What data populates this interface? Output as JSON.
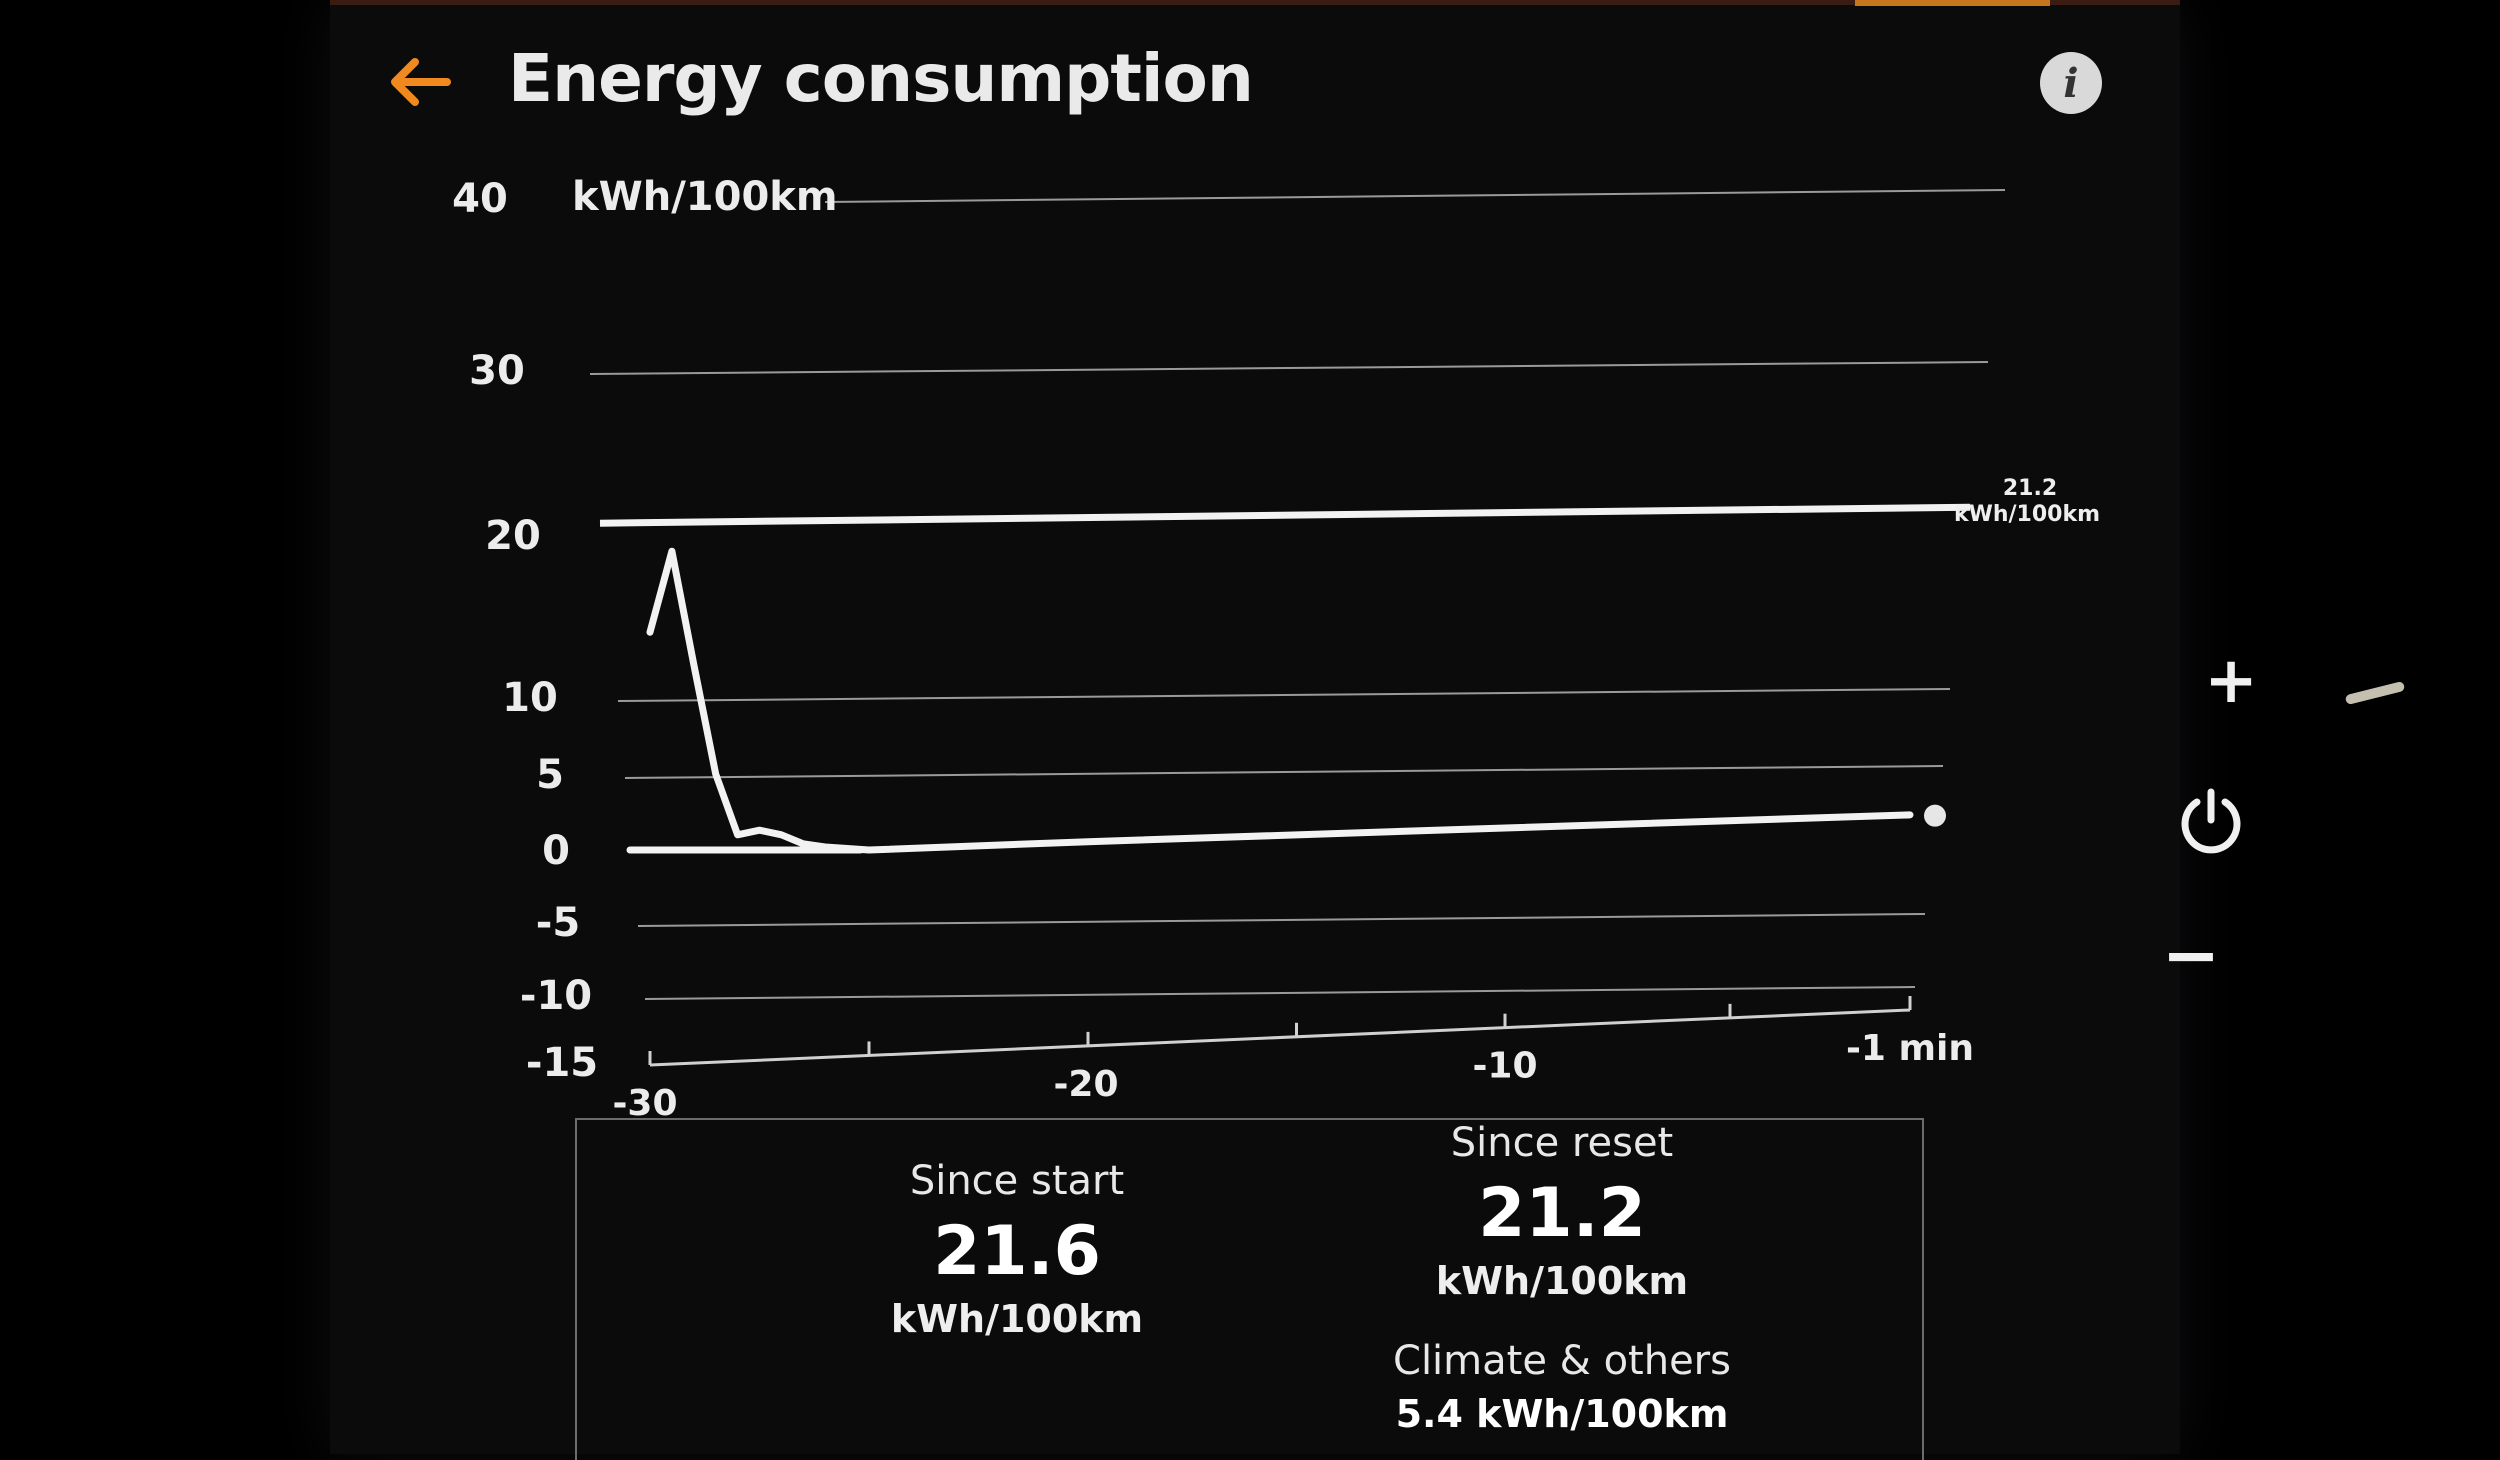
{
  "header": {
    "title": "Energy consumption",
    "back_icon": "arrow-left-icon",
    "info_icon": "info-icon",
    "info_label": "i"
  },
  "colors": {
    "accent": "#f0891e",
    "background": "#0b0b0c",
    "line": "#f2f2f2",
    "grid": "#9a9a9a"
  },
  "chart_data": {
    "type": "line",
    "y_unit": "kWh/100km",
    "y_ticks": [
      "40",
      "30",
      "20",
      "10",
      "5",
      "0",
      "-5",
      "-10",
      "-15"
    ],
    "x_ticks": [
      "-30",
      "-20",
      "-10",
      "-1 min"
    ],
    "series": [
      {
        "x": [
          -30,
          -29.5,
          -29.0,
          -28.5,
          -28.0,
          -27.5,
          -27.0,
          -26.5,
          -26.0,
          -25.0,
          -20,
          -10,
          -1
        ],
        "y": [
          14,
          19,
          12,
          5,
          1,
          1.3,
          1,
          0.4,
          0.2,
          0,
          0.4,
          1,
          1.6
        ]
      }
    ],
    "reference_line": {
      "value": 21.2,
      "label_value": "21.2",
      "label_unit": "kWh/100km"
    },
    "current_point": {
      "x": -1,
      "y": 1.6
    },
    "grid": true
  },
  "stats": {
    "since_start": {
      "label": "Since start",
      "value": "21.6",
      "unit": "kWh/100km"
    },
    "since_reset": {
      "label": "Since reset",
      "value": "21.2",
      "unit": "kWh/100km"
    },
    "climate": {
      "label": "Climate & others",
      "value": "5.4 kWh/100km"
    }
  },
  "side_controls": {
    "plus": "+",
    "minus": "−",
    "power_icon": "power-icon"
  }
}
